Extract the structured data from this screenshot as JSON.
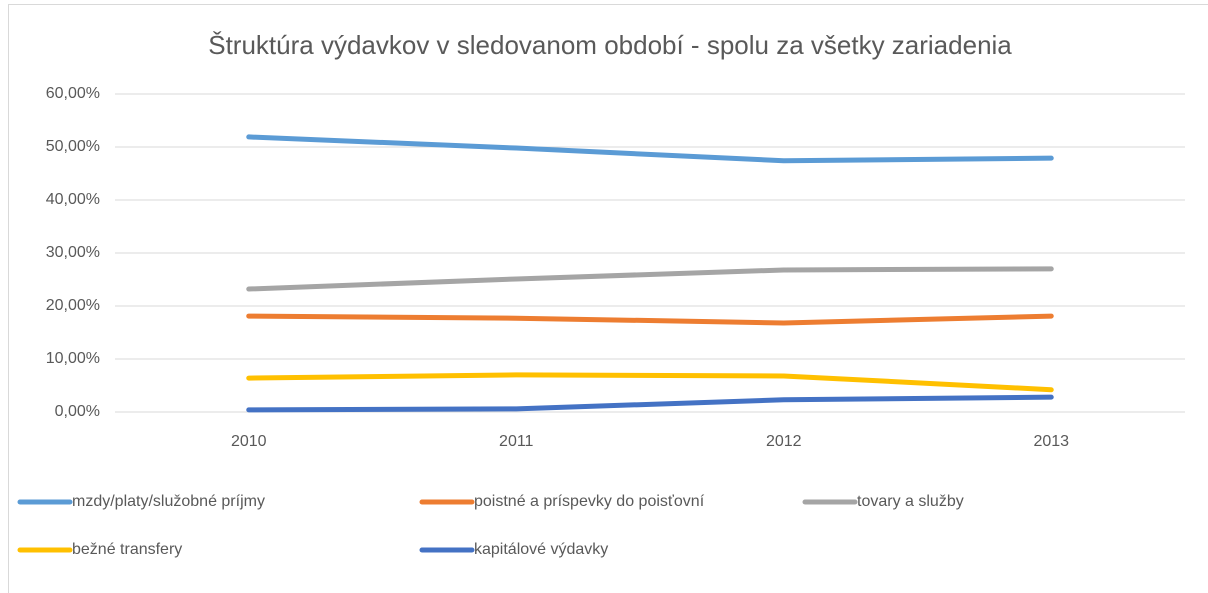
{
  "chart_data": {
    "type": "line",
    "title": "Štruktúra výdavkov v sledovanom období - spolu za všetky zariadenia",
    "categories": [
      "2010",
      "2011",
      "2012",
      "2013"
    ],
    "series": [
      {
        "name": "mzdy/platy/služobné príjmy",
        "color": "#5b9bd5",
        "values": [
          51.9,
          49.8,
          47.4,
          47.9
        ]
      },
      {
        "name": "poistné a príspevky do poisťovní",
        "color": "#ed7d31",
        "values": [
          18.1,
          17.7,
          16.8,
          18.1
        ]
      },
      {
        "name": "tovary a služby",
        "color": "#a5a5a5",
        "values": [
          23.2,
          25.1,
          26.8,
          27.0
        ]
      },
      {
        "name": "bežné transfery",
        "color": "#ffc000",
        "values": [
          6.4,
          7.0,
          6.8,
          4.2
        ]
      },
      {
        "name": "kapitálové výdavky",
        "color": "#4472c4",
        "values": [
          0.4,
          0.6,
          2.3,
          2.8
        ]
      }
    ],
    "ylim": [
      0,
      60
    ],
    "yticks": [
      {
        "value": 0,
        "label": "0,00%"
      },
      {
        "value": 10,
        "label": "10,00%"
      },
      {
        "value": 20,
        "label": "20,00%"
      },
      {
        "value": 30,
        "label": "30,00%"
      },
      {
        "value": 40,
        "label": "40,00%"
      },
      {
        "value": 50,
        "label": "50,00%"
      },
      {
        "value": 60,
        "label": "60,00%"
      }
    ],
    "grid": true,
    "legend": "bottom"
  }
}
